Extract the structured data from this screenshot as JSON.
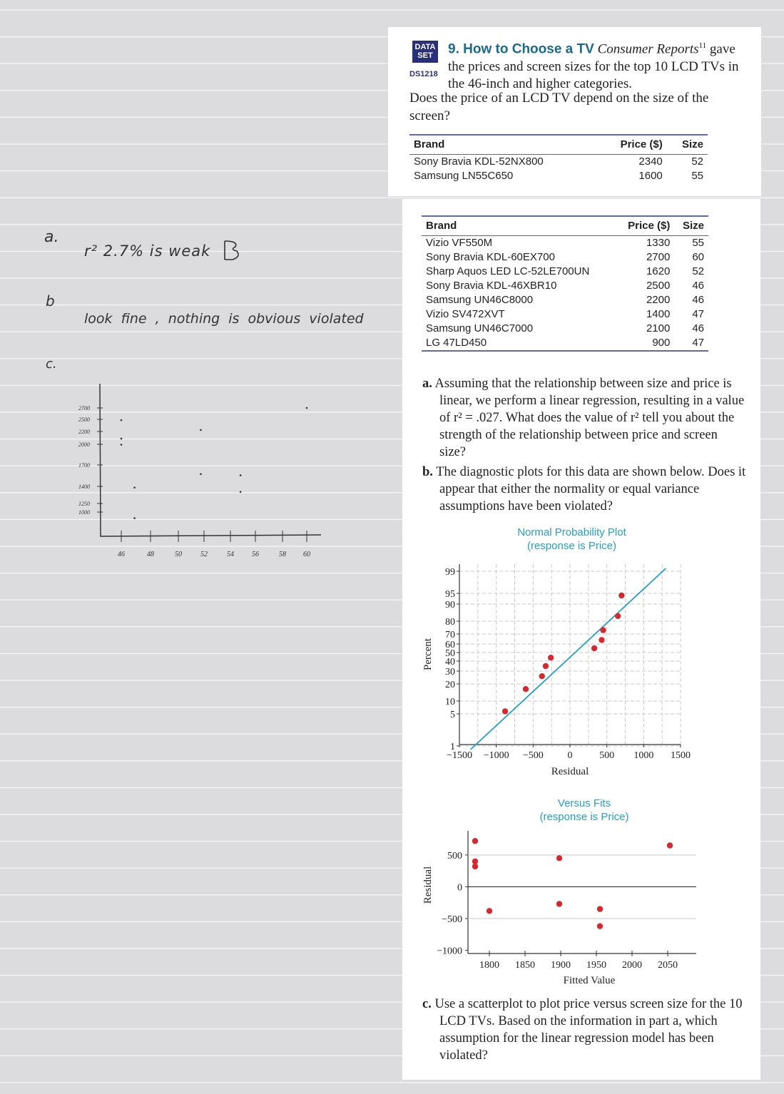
{
  "notes": {
    "a_label": "a.",
    "a_text": "r² 2.7% is weak",
    "b_label": "b",
    "b_text": "look fine , nothing is obvious violated",
    "c_label": "c.",
    "sketch_y_labels": [
      "2700",
      "2500",
      "2200",
      "2000",
      "1700",
      "1400",
      "1250",
      "1000"
    ],
    "sketch_x_labels": [
      "46",
      "48",
      "50",
      "52",
      "54",
      "56",
      "58",
      "60"
    ]
  },
  "problem": {
    "badge_line1": "DATA",
    "badge_line2": "SET",
    "dataset_id": "DS1218",
    "number_title": "9. How to Choose a TV",
    "source": "Consumer Reports",
    "source_note": "11",
    "intro_line": "gave the prices and screen sizes for the top 10 LCD TVs in the 46-inch and higher categories.",
    "question": "Does the price of an LCD TV depend on the size of the screen?",
    "table_headers": [
      "Brand",
      "Price ($)",
      "Size"
    ],
    "table_rows_top": [
      [
        "Sony Bravia KDL-52NX800",
        "2340",
        "52"
      ],
      [
        "Samsung LN55C650",
        "1600",
        "55"
      ]
    ],
    "table_rows_main": [
      [
        "Vizio VF550M",
        "1330",
        "55"
      ],
      [
        "Sony Bravia KDL-60EX700",
        "2700",
        "60"
      ],
      [
        "Sharp Aquos LED LC-52LE700UN",
        "1620",
        "52"
      ],
      [
        "Sony Bravia KDL-46XBR10",
        "2500",
        "46"
      ],
      [
        "Samsung UN46C8000",
        "2200",
        "46"
      ],
      [
        "Vizio SV472XVT",
        "1400",
        "47"
      ],
      [
        "Samsung UN46C7000",
        "2100",
        "46"
      ],
      [
        "LG 47LD450",
        "900",
        "47"
      ]
    ],
    "part_a_label": "a.",
    "part_a": "Assuming that the relationship between size and price is linear, we perform a linear regression, resulting in a value of r² = .027. What does the value of r² tell you about the strength of the relationship between price and screen size?",
    "part_b_label": "b.",
    "part_b": "The diagnostic plots for this data are shown below. Does it appear that either the normality or equal variance assumptions have been violated?",
    "part_c_label": "c.",
    "part_c": "Use a scatterplot to plot price versus screen size for the 10 LCD TVs. Based on the information in part a, which assumption for the linear regression model has been violated?"
  },
  "chart_data": [
    {
      "type": "scatter",
      "title": "Normal Probability Plot",
      "subtitle": "(response is Price)",
      "xlabel": "Residual",
      "ylabel": "Percent",
      "x_ticks": [
        "−1500",
        "−1000",
        "−500",
        "0",
        "500",
        "1000",
        "1500"
      ],
      "y_ticks": [
        "1",
        "5",
        "10",
        "20",
        "30",
        "40",
        "50",
        "60",
        "70",
        "80",
        "90",
        "95",
        "99"
      ],
      "xlim": [
        -1500,
        1500
      ],
      "grid": true,
      "points": [
        {
          "x": -880,
          "y": 6
        },
        {
          "x": -600,
          "y": 17
        },
        {
          "x": -380,
          "y": 26
        },
        {
          "x": -330,
          "y": 35
        },
        {
          "x": -260,
          "y": 44
        },
        {
          "x": 330,
          "y": 55
        },
        {
          "x": 430,
          "y": 64
        },
        {
          "x": 450,
          "y": 73
        },
        {
          "x": 650,
          "y": 83
        },
        {
          "x": 700,
          "y": 94
        }
      ],
      "fit_line": {
        "x": [
          -1350,
          1300
        ],
        "y": [
          0.5,
          99.5
        ]
      },
      "colors": {
        "points": "#d42a2f",
        "line": "#22a0c8",
        "title": "#22a0c8"
      }
    },
    {
      "type": "scatter",
      "title": "Versus Fits",
      "subtitle": "(response is Price)",
      "xlabel": "Fitted Value",
      "ylabel": "Residual",
      "x_ticks": [
        "1800",
        "1850",
        "1900",
        "1950",
        "2000",
        "2050"
      ],
      "y_ticks": [
        "500",
        "0",
        "−500",
        "−1000"
      ],
      "xlim": [
        1770,
        2090
      ],
      "ylim": [
        -1050,
        880
      ],
      "points": [
        {
          "x": 1780,
          "y": 720
        },
        {
          "x": 1780,
          "y": 400
        },
        {
          "x": 1780,
          "y": 320
        },
        {
          "x": 1800,
          "y": -380
        },
        {
          "x": 1898,
          "y": 450
        },
        {
          "x": 1898,
          "y": -270
        },
        {
          "x": 1955,
          "y": -350
        },
        {
          "x": 1955,
          "y": -620
        },
        {
          "x": 2053,
          "y": 650
        }
      ],
      "colors": {
        "points": "#d42a2f",
        "zero_line": "#333333",
        "title": "#22a0c8"
      }
    },
    {
      "type": "scatter",
      "title": "",
      "xlabel": "",
      "ylabel": "",
      "note": "hand-drawn scatterplot of price versus screen size",
      "xlim": [
        45,
        61
      ],
      "ylim": [
        900,
        2800
      ],
      "points": [
        {
          "x": 46,
          "y": 2500
        },
        {
          "x": 46,
          "y": 2200
        },
        {
          "x": 46,
          "y": 2100
        },
        {
          "x": 47,
          "y": 1400
        },
        {
          "x": 47,
          "y": 900
        },
        {
          "x": 52,
          "y": 2340
        },
        {
          "x": 52,
          "y": 1620
        },
        {
          "x": 55,
          "y": 1600
        },
        {
          "x": 55,
          "y": 1330
        },
        {
          "x": 60,
          "y": 2700
        }
      ]
    }
  ]
}
